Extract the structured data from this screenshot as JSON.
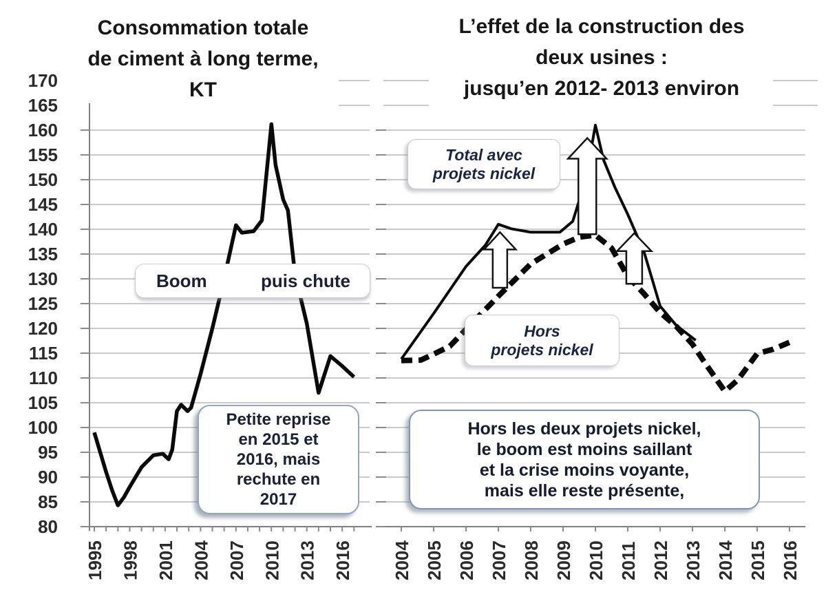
{
  "page": {
    "background": "#ffffff"
  },
  "colors": {
    "line": "#0a0a0a",
    "grid": "#b8b8b8",
    "axis": "#7f7f7f",
    "tick": "#8a8a8a",
    "tick_label": "#2a2a2a",
    "annotation_text": "#1b2036",
    "box_border_blue": "#7e96b6",
    "box_border_gray": "#c6c6c6",
    "arrow_fill": "#ffffff",
    "arrow_stroke": "#141414"
  },
  "chart_data": [
    {
      "id": "left",
      "type": "line",
      "title": "Consommation totale de ciment à long terme, KT",
      "title_lines": [
        "Consommation totale",
        "de ciment à long terme,",
        "KT"
      ],
      "ylabel": "KT",
      "ylim": [
        80,
        170
      ],
      "grid": true,
      "y_ticks": [
        170,
        165,
        160,
        155,
        150,
        145,
        140,
        135,
        130,
        125,
        120,
        115,
        110,
        105,
        100,
        95,
        90,
        85,
        80
      ],
      "x_tick_labels": [
        "1995",
        "1998",
        "2001",
        "2004",
        "2007",
        "2010",
        "2013",
        "2016"
      ],
      "x_range": [
        1995,
        2017
      ],
      "series": [
        {
          "name": "Consommation totale de ciment (KT)",
          "style": "solid",
          "points": [
            [
              1995,
              99
            ],
            [
              1995.5,
              95
            ],
            [
              1996,
              91
            ],
            [
              1996.5,
              87.4
            ],
            [
              1997,
              84.3
            ],
            [
              1997.5,
              85.9
            ],
            [
              1998,
              88
            ],
            [
              1999,
              92
            ],
            [
              2000,
              94.4
            ],
            [
              2000.8,
              94.7
            ],
            [
              2001.3,
              93.6
            ],
            [
              2001.6,
              95.5
            ],
            [
              2002,
              103.3
            ],
            [
              2002.35,
              104.6
            ],
            [
              2002.9,
              103.3
            ],
            [
              2003.2,
              104
            ],
            [
              2004,
              110.8
            ],
            [
              2005,
              120
            ],
            [
              2006,
              130
            ],
            [
              2007,
              140.8
            ],
            [
              2007.5,
              139.3
            ],
            [
              2008.5,
              139.6
            ],
            [
              2009.2,
              141.8
            ],
            [
              2010,
              161.2
            ],
            [
              2010.35,
              153
            ],
            [
              2011,
              146
            ],
            [
              2011.4,
              143.8
            ],
            [
              2012,
              131
            ],
            [
              2013,
              121
            ],
            [
              2014,
              107
            ],
            [
              2015,
              114.4
            ],
            [
              2016,
              112.4
            ],
            [
              2017,
              110.2
            ]
          ]
        }
      ],
      "annotations": {
        "boom": "Boom",
        "chute": "puis chute",
        "note_lines": [
          "Petite reprise",
          "en 2015 et",
          "2016, mais",
          "rechute en",
          "2017"
        ],
        "note_text": "Petite reprise en 2015 et 2016, mais rechute en 2017"
      }
    },
    {
      "id": "right",
      "type": "line",
      "title": "L’effet de la construction des deux usines : jusqu’en 2012- 2013 environ",
      "title_lines": [
        "L’effet de la construction des",
        "deux usines :",
        "jusqu’en 2012- 2013 environ"
      ],
      "ylim": [
        80,
        170
      ],
      "grid": true,
      "x_tick_labels": [
        "2004",
        "2005",
        "2006",
        "2007",
        "2008",
        "2009",
        "2010",
        "2011",
        "2012",
        "2013",
        "2014",
        "2015",
        "2016"
      ],
      "x_range": [
        2004,
        2016
      ],
      "series": [
        {
          "name": "Total avec projets nickel",
          "style": "solid",
          "points": [
            [
              2004,
              113.8
            ],
            [
              2005,
              123
            ],
            [
              2006,
              132.5
            ],
            [
              2006.6,
              136.8
            ],
            [
              2007,
              141
            ],
            [
              2007.4,
              140.1
            ],
            [
              2008,
              139.4
            ],
            [
              2008.9,
              139.4
            ],
            [
              2009.3,
              141.6
            ],
            [
              2009.7,
              150
            ],
            [
              2010,
              161
            ],
            [
              2010.25,
              154
            ],
            [
              2010.6,
              148.5
            ],
            [
              2011,
              143
            ],
            [
              2011.5,
              135.5
            ],
            [
              2012,
              124.5
            ],
            [
              2012.5,
              120.6
            ],
            [
              2013.1,
              117.6
            ]
          ]
        },
        {
          "name": "Hors projets nickel",
          "style": "dashed",
          "points": [
            [
              2004,
              113.5
            ],
            [
              2004.6,
              113.6
            ],
            [
              2005,
              114.8
            ],
            [
              2005.5,
              116.4
            ],
            [
              2006,
              119.8
            ],
            [
              2007,
              126.5
            ],
            [
              2008,
              133
            ],
            [
              2009,
              137
            ],
            [
              2009.5,
              138.4
            ],
            [
              2010,
              138.8
            ],
            [
              2010.5,
              136.2
            ],
            [
              2011,
              130.5
            ],
            [
              2011.5,
              127
            ],
            [
              2012,
              123.2
            ],
            [
              2012.5,
              120.4
            ],
            [
              2013,
              116.8
            ],
            [
              2013.4,
              112.9
            ],
            [
              2014,
              107.3
            ],
            [
              2014.4,
              109.6
            ],
            [
              2015,
              114.9
            ],
            [
              2015.5,
              115.8
            ],
            [
              2016,
              117.2
            ]
          ]
        }
      ],
      "annotations": {
        "label_total_lines": [
          "Total avec",
          "projets nickel"
        ],
        "label_hors_lines": [
          "Hors",
          "projets nickel"
        ],
        "note_lines": [
          "Hors les deux projets nickel,",
          "le boom est moins saillant",
          "et la crise moins voyante,",
          "mais elle reste présente,"
        ],
        "arrows": [
          {
            "year": 2007.05,
            "from_value": 128.2,
            "to_value": 139.4
          },
          {
            "year": 2009.75,
            "from_value": 139.0,
            "to_value": 158.4
          },
          {
            "year": 2011.2,
            "from_value": 129.0,
            "to_value": 139.2
          }
        ]
      }
    }
  ]
}
